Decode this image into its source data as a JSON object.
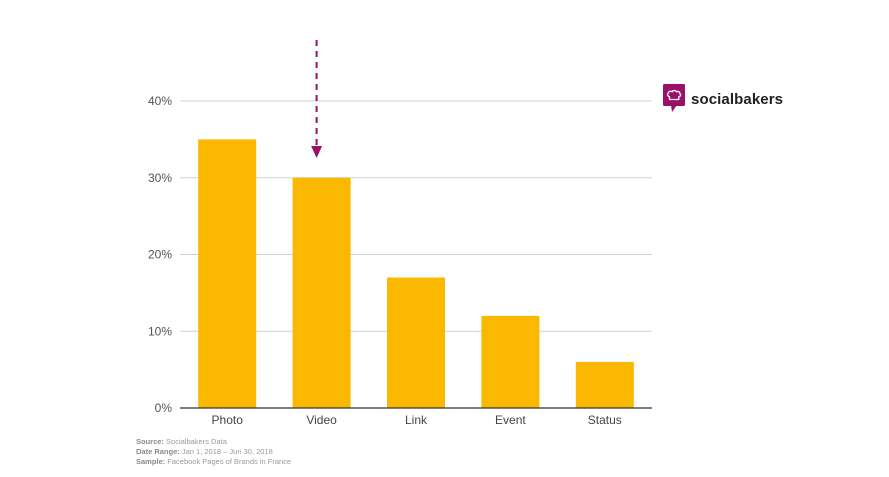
{
  "chart_data": {
    "type": "bar",
    "categories": [
      "Photo",
      "Video",
      "Link",
      "Event",
      "Status"
    ],
    "values": [
      35,
      30,
      17,
      12,
      6
    ],
    "ylim": [
      0,
      40
    ],
    "yticks": [
      0,
      10,
      20,
      30,
      40
    ],
    "ytick_labels": [
      "0%",
      "10%",
      "20%",
      "30%",
      "40%"
    ],
    "title": "",
    "xlabel": "",
    "ylabel": "",
    "grid": true,
    "annotation": {
      "type": "dashed-arrow",
      "target_category": "Video",
      "color": "#9b1167"
    },
    "bar_color": "#fbb800"
  },
  "brand": {
    "name": "socialbakers",
    "color": "#9b1167"
  },
  "footer": {
    "source_label": "Source:",
    "source_value": "Socialbakers Data",
    "date_label": "Date Range:",
    "date_value": "Jan 1, 2018  – Jun 30, 2018",
    "sample_label": "Sample:",
    "sample_value": "Facebook Pages of Brands in France"
  },
  "colors": {
    "grid": "#d0d0d0",
    "axis": "#333333",
    "tick_text": "#555555"
  }
}
